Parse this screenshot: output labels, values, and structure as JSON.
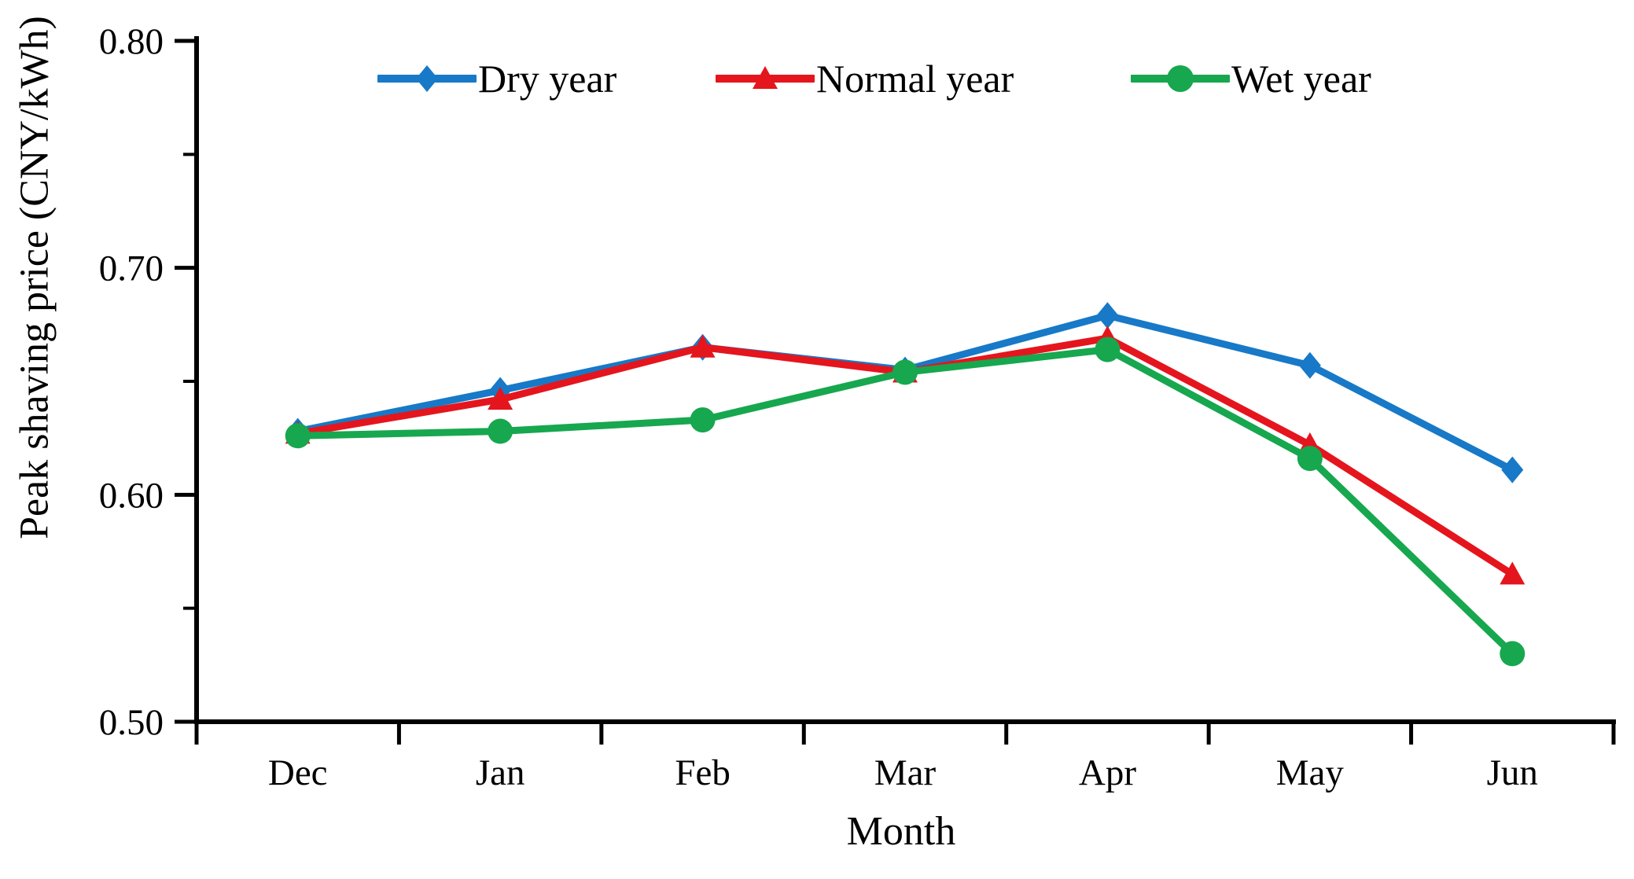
{
  "figure": {
    "background": "#ffffff",
    "axis_color": "#000000",
    "text_color": "#000000"
  },
  "chart_data": {
    "type": "line",
    "title": "",
    "xlabel": "Month",
    "ylabel": "Peak shaving price (CNY/kWh)",
    "categories": [
      "Dec",
      "Jan",
      "Feb",
      "Mar",
      "Apr",
      "May",
      "Jun"
    ],
    "series": [
      {
        "name": "Dry year",
        "color": "#1779c7",
        "marker": "diamond",
        "values": [
          0.628,
          0.646,
          0.665,
          0.655,
          0.679,
          0.657,
          0.611
        ]
      },
      {
        "name": "Normal year",
        "color": "#e5151d",
        "marker": "triangle",
        "values": [
          0.627,
          0.642,
          0.665,
          0.654,
          0.669,
          0.622,
          0.565
        ]
      },
      {
        "name": "Wet year",
        "color": "#17a74f",
        "marker": "circle",
        "values": [
          0.626,
          0.628,
          0.633,
          0.654,
          0.664,
          0.616,
          0.53
        ]
      }
    ],
    "ylim": [
      0.5,
      0.8
    ],
    "y_major_ticks": [
      0.8,
      0.7,
      0.6,
      0.5
    ],
    "y_minor_ticks": [
      0.75,
      0.65,
      0.55
    ],
    "y_tick_labels": [
      "0.80",
      "0.70",
      "0.60",
      "0.50"
    ],
    "grid": false,
    "legend_position": "top"
  }
}
